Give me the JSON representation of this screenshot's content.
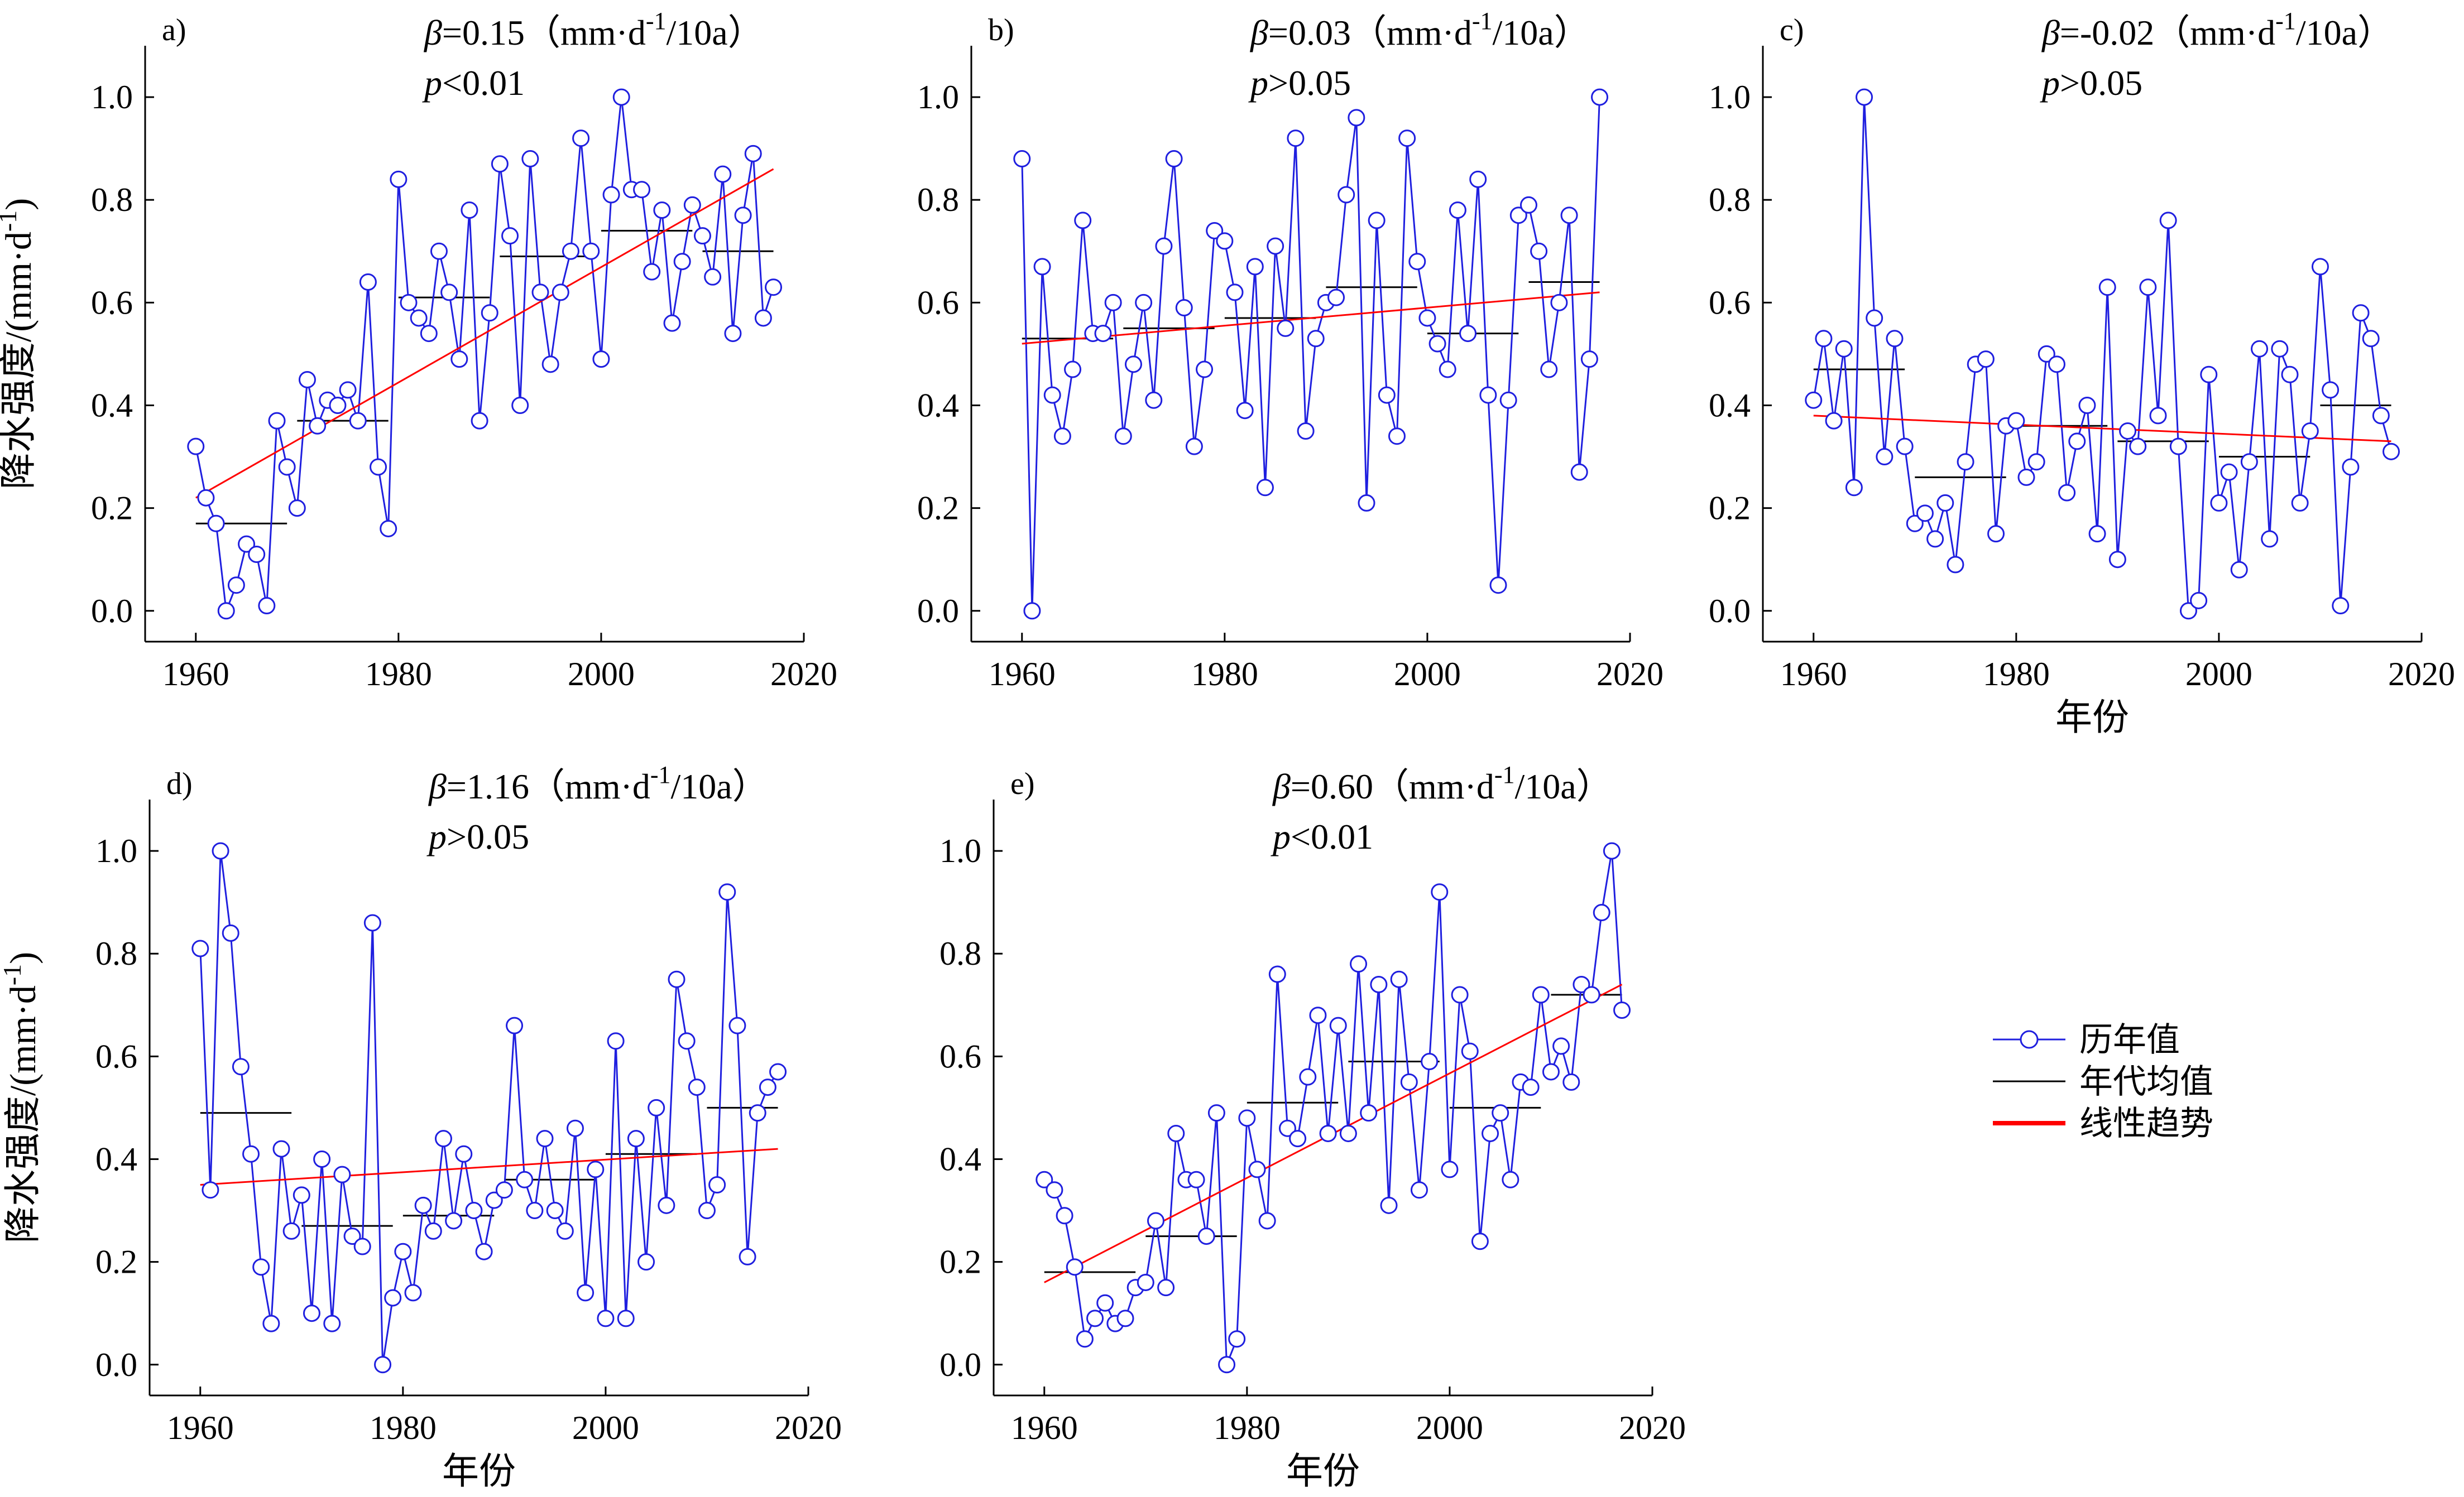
{
  "colors": {
    "series": "#1f1fdf",
    "trend": "#ff0000",
    "decade": "#000000"
  },
  "legend": {
    "items": [
      "历年值",
      "年代均值",
      "线性趋势"
    ]
  },
  "chart_data": [
    {
      "id": "a",
      "type": "line",
      "panel_label": "a)",
      "beta_symbol": "β",
      "beta_text": "=0.15（mm·d",
      "beta_sup": "-1",
      "beta_tail": "/10a）",
      "p_symbol": "p",
      "p_text": "<0.01",
      "ylabel_main": "降水强度/(mm·d",
      "ylabel_sup": "-1",
      "ylabel_tail": ")",
      "xlabel": "",
      "xlim": [
        1955,
        2020
      ],
      "ylim": [
        -0.06,
        1.1
      ],
      "xticks": [
        1960,
        1980,
        2000,
        2020
      ],
      "yticks": [
        0.0,
        0.2,
        0.4,
        0.6,
        0.8,
        1.0
      ],
      "x": [
        1960,
        1961,
        1962,
        1963,
        1964,
        1965,
        1966,
        1967,
        1968,
        1969,
        1970,
        1971,
        1972,
        1973,
        1974,
        1975,
        1976,
        1977,
        1978,
        1979,
        1980,
        1981,
        1982,
        1983,
        1984,
        1985,
        1986,
        1987,
        1988,
        1989,
        1990,
        1991,
        1992,
        1993,
        1994,
        1995,
        1996,
        1997,
        1998,
        1999,
        2000,
        2001,
        2002,
        2003,
        2004,
        2005,
        2006,
        2007,
        2008,
        2009,
        2010,
        2011,
        2012,
        2013,
        2014,
        2015,
        2016,
        2017
      ],
      "series": [
        {
          "name": "历年值",
          "values": [
            0.32,
            0.22,
            0.17,
            0.0,
            0.05,
            0.13,
            0.11,
            0.01,
            0.37,
            0.28,
            0.2,
            0.45,
            0.36,
            0.41,
            0.4,
            0.43,
            0.37,
            0.64,
            0.28,
            0.16,
            0.84,
            0.6,
            0.57,
            0.54,
            0.7,
            0.62,
            0.49,
            0.78,
            0.37,
            0.58,
            0.87,
            0.73,
            0.4,
            0.88,
            0.62,
            0.48,
            0.62,
            0.7,
            0.92,
            0.7,
            0.49,
            0.81,
            1.0,
            0.82,
            0.82,
            0.66,
            0.78,
            0.56,
            0.68,
            0.79,
            0.73,
            0.65,
            0.85,
            0.54,
            0.77,
            0.89,
            0.57,
            0.63
          ]
        }
      ],
      "decade_means": [
        {
          "x0": 1960,
          "x1": 1969,
          "value": 0.17
        },
        {
          "x0": 1970,
          "x1": 1979,
          "value": 0.37
        },
        {
          "x0": 1980,
          "x1": 1989,
          "value": 0.61
        },
        {
          "x0": 1990,
          "x1": 1999,
          "value": 0.69
        },
        {
          "x0": 2000,
          "x1": 2009,
          "value": 0.74
        },
        {
          "x0": 2010,
          "x1": 2017,
          "value": 0.7
        }
      ],
      "trend": {
        "x0": 1960,
        "y0": 0.22,
        "x1": 2017,
        "y1": 0.86
      }
    },
    {
      "id": "b",
      "type": "line",
      "panel_label": "b)",
      "beta_symbol": "β",
      "beta_text": "=0.03（mm·d",
      "beta_sup": "-1",
      "beta_tail": "/10a）",
      "p_symbol": "p",
      "p_text": ">0.05",
      "ylabel_main": "",
      "ylabel_sup": "",
      "ylabel_tail": "",
      "xlabel": "",
      "xlim": [
        1955,
        2020
      ],
      "ylim": [
        -0.06,
        1.1
      ],
      "xticks": [
        1960,
        1980,
        2000,
        2020
      ],
      "yticks": [
        0.0,
        0.2,
        0.4,
        0.6,
        0.8,
        1.0
      ],
      "x": [
        1960,
        1961,
        1962,
        1963,
        1964,
        1965,
        1966,
        1967,
        1968,
        1969,
        1970,
        1971,
        1972,
        1973,
        1974,
        1975,
        1976,
        1977,
        1978,
        1979,
        1980,
        1981,
        1982,
        1983,
        1984,
        1985,
        1986,
        1987,
        1988,
        1989,
        1990,
        1991,
        1992,
        1993,
        1994,
        1995,
        1996,
        1997,
        1998,
        1999,
        2000,
        2001,
        2002,
        2003,
        2004,
        2005,
        2006,
        2007,
        2008,
        2009,
        2010,
        2011,
        2012,
        2013,
        2014,
        2015,
        2016,
        2017
      ],
      "series": [
        {
          "name": "历年值",
          "values": [
            0.88,
            0.0,
            0.67,
            0.42,
            0.34,
            0.47,
            0.76,
            0.54,
            0.54,
            0.6,
            0.34,
            0.48,
            0.6,
            0.41,
            0.71,
            0.88,
            0.59,
            0.32,
            0.47,
            0.74,
            0.72,
            0.62,
            0.39,
            0.67,
            0.24,
            0.71,
            0.55,
            0.92,
            0.35,
            0.53,
            0.6,
            0.61,
            0.81,
            0.96,
            0.21,
            0.76,
            0.42,
            0.34,
            0.92,
            0.68,
            0.57,
            0.52,
            0.47,
            0.78,
            0.54,
            0.84,
            0.42,
            0.05,
            0.41,
            0.77,
            0.79,
            0.7,
            0.47,
            0.6,
            0.77,
            0.27,
            0.49,
            1.0
          ]
        }
      ],
      "decade_means": [
        {
          "x0": 1960,
          "x1": 1969,
          "value": 0.53
        },
        {
          "x0": 1970,
          "x1": 1979,
          "value": 0.55
        },
        {
          "x0": 1980,
          "x1": 1989,
          "value": 0.57
        },
        {
          "x0": 1990,
          "x1": 1999,
          "value": 0.63
        },
        {
          "x0": 2000,
          "x1": 2009,
          "value": 0.54
        },
        {
          "x0": 2010,
          "x1": 2017,
          "value": 0.64
        }
      ],
      "trend": {
        "x0": 1960,
        "y0": 0.52,
        "x1": 2017,
        "y1": 0.62
      }
    },
    {
      "id": "c",
      "type": "line",
      "panel_label": "c)",
      "beta_symbol": "β",
      "beta_text": "=-0.02（mm·d",
      "beta_sup": "-1",
      "beta_tail": "/10a）",
      "p_symbol": "p",
      "p_text": ">0.05",
      "ylabel_main": "",
      "ylabel_sup": "",
      "ylabel_tail": "",
      "xlabel": "年份",
      "xlim": [
        1955,
        2020
      ],
      "ylim": [
        -0.06,
        1.1
      ],
      "xticks": [
        1960,
        1980,
        2000,
        2020
      ],
      "yticks": [
        0.0,
        0.2,
        0.4,
        0.6,
        0.8,
        1.0
      ],
      "x": [
        1960,
        1961,
        1962,
        1963,
        1964,
        1965,
        1966,
        1967,
        1968,
        1969,
        1970,
        1971,
        1972,
        1973,
        1974,
        1975,
        1976,
        1977,
        1978,
        1979,
        1980,
        1981,
        1982,
        1983,
        1984,
        1985,
        1986,
        1987,
        1988,
        1989,
        1990,
        1991,
        1992,
        1993,
        1994,
        1995,
        1996,
        1997,
        1998,
        1999,
        2000,
        2001,
        2002,
        2003,
        2004,
        2005,
        2006,
        2007,
        2008,
        2009,
        2010,
        2011,
        2012,
        2013,
        2014,
        2015,
        2016,
        2017
      ],
      "series": [
        {
          "name": "历年值",
          "values": [
            0.41,
            0.53,
            0.37,
            0.51,
            0.24,
            1.0,
            0.57,
            0.3,
            0.53,
            0.32,
            0.17,
            0.19,
            0.14,
            0.21,
            0.09,
            0.29,
            0.48,
            0.49,
            0.15,
            0.36,
            0.37,
            0.26,
            0.29,
            0.5,
            0.48,
            0.23,
            0.33,
            0.4,
            0.15,
            0.63,
            0.1,
            0.35,
            0.32,
            0.63,
            0.38,
            0.76,
            0.32,
            0.0,
            0.02,
            0.46,
            0.21,
            0.27,
            0.08,
            0.29,
            0.51,
            0.14,
            0.51,
            0.46,
            0.21,
            0.35,
            0.67,
            0.43,
            0.01,
            0.28,
            0.58,
            0.53,
            0.38,
            0.31
          ]
        }
      ],
      "decade_means": [
        {
          "x0": 1960,
          "x1": 1969,
          "value": 0.47
        },
        {
          "x0": 1970,
          "x1": 1979,
          "value": 0.26
        },
        {
          "x0": 1980,
          "x1": 1989,
          "value": 0.36
        },
        {
          "x0": 1990,
          "x1": 1999,
          "value": 0.33
        },
        {
          "x0": 2000,
          "x1": 2009,
          "value": 0.3
        },
        {
          "x0": 2010,
          "x1": 2017,
          "value": 0.4
        }
      ],
      "trend": {
        "x0": 1960,
        "y0": 0.38,
        "x1": 2017,
        "y1": 0.33
      }
    },
    {
      "id": "d",
      "type": "line",
      "panel_label": "d)",
      "beta_symbol": "β",
      "beta_text": "=1.16（mm·d",
      "beta_sup": "-1",
      "beta_tail": "/10a）",
      "p_symbol": "p",
      "p_text": ">0.05",
      "ylabel_main": "降水强度/(mm·d",
      "ylabel_sup": "-1",
      "ylabel_tail": ")",
      "xlabel": "年份",
      "xlim": [
        1955,
        2020
      ],
      "ylim": [
        -0.06,
        1.1
      ],
      "xticks": [
        1960,
        1980,
        2000,
        2020
      ],
      "yticks": [
        0.0,
        0.2,
        0.4,
        0.6,
        0.8,
        1.0
      ],
      "x": [
        1960,
        1961,
        1962,
        1963,
        1964,
        1965,
        1966,
        1967,
        1968,
        1969,
        1970,
        1971,
        1972,
        1973,
        1974,
        1975,
        1976,
        1977,
        1978,
        1979,
        1980,
        1981,
        1982,
        1983,
        1984,
        1985,
        1986,
        1987,
        1988,
        1989,
        1990,
        1991,
        1992,
        1993,
        1994,
        1995,
        1996,
        1997,
        1998,
        1999,
        2000,
        2001,
        2002,
        2003,
        2004,
        2005,
        2006,
        2007,
        2008,
        2009,
        2010,
        2011,
        2012,
        2013,
        2014,
        2015,
        2016,
        2017
      ],
      "series": [
        {
          "name": "历年值",
          "values": [
            0.81,
            0.34,
            1.0,
            0.84,
            0.58,
            0.41,
            0.19,
            0.08,
            0.42,
            0.26,
            0.33,
            0.1,
            0.4,
            0.08,
            0.37,
            0.25,
            0.23,
            0.86,
            0.0,
            0.13,
            0.22,
            0.14,
            0.31,
            0.26,
            0.44,
            0.28,
            0.41,
            0.3,
            0.22,
            0.32,
            0.34,
            0.66,
            0.36,
            0.3,
            0.44,
            0.3,
            0.26,
            0.46,
            0.14,
            0.38,
            0.09,
            0.63,
            0.09,
            0.44,
            0.2,
            0.5,
            0.31,
            0.75,
            0.63,
            0.54,
            0.3,
            0.35,
            0.92,
            0.66,
            0.21,
            0.49,
            0.54,
            0.57
          ]
        }
      ],
      "decade_means": [
        {
          "x0": 1960,
          "x1": 1969,
          "value": 0.49
        },
        {
          "x0": 1970,
          "x1": 1979,
          "value": 0.27
        },
        {
          "x0": 1980,
          "x1": 1989,
          "value": 0.29
        },
        {
          "x0": 1990,
          "x1": 1999,
          "value": 0.36
        },
        {
          "x0": 2000,
          "x1": 2009,
          "value": 0.41
        },
        {
          "x0": 2010,
          "x1": 2017,
          "value": 0.5
        }
      ],
      "trend": {
        "x0": 1960,
        "y0": 0.35,
        "x1": 2017,
        "y1": 0.42
      }
    },
    {
      "id": "e",
      "type": "line",
      "panel_label": "e)",
      "beta_symbol": "β",
      "beta_text": "=0.60（mm·d",
      "beta_sup": "-1",
      "beta_tail": "/10a）",
      "p_symbol": "p",
      "p_text": "<0.01",
      "ylabel_main": "",
      "ylabel_sup": "",
      "ylabel_tail": "",
      "xlabel": "年份",
      "xlim": [
        1955,
        2020
      ],
      "ylim": [
        -0.06,
        1.1
      ],
      "xticks": [
        1960,
        1980,
        2000,
        2020
      ],
      "yticks": [
        0.0,
        0.2,
        0.4,
        0.6,
        0.8,
        1.0
      ],
      "x": [
        1960,
        1961,
        1962,
        1963,
        1964,
        1965,
        1966,
        1967,
        1968,
        1969,
        1970,
        1971,
        1972,
        1973,
        1974,
        1975,
        1976,
        1977,
        1978,
        1979,
        1980,
        1981,
        1982,
        1983,
        1984,
        1985,
        1986,
        1987,
        1988,
        1989,
        1990,
        1991,
        1992,
        1993,
        1994,
        1995,
        1996,
        1997,
        1998,
        1999,
        2000,
        2001,
        2002,
        2003,
        2004,
        2005,
        2006,
        2007,
        2008,
        2009,
        2010,
        2011,
        2012,
        2013,
        2014,
        2015,
        2016,
        2017
      ],
      "series": [
        {
          "name": "历年值",
          "values": [
            0.36,
            0.34,
            0.29,
            0.19,
            0.05,
            0.09,
            0.12,
            0.08,
            0.09,
            0.15,
            0.16,
            0.28,
            0.15,
            0.45,
            0.36,
            0.36,
            0.25,
            0.49,
            0.0,
            0.05,
            0.48,
            0.38,
            0.28,
            0.76,
            0.46,
            0.44,
            0.56,
            0.68,
            0.45,
            0.66,
            0.45,
            0.78,
            0.49,
            0.74,
            0.31,
            0.75,
            0.55,
            0.34,
            0.59,
            0.92,
            0.38,
            0.72,
            0.61,
            0.24,
            0.45,
            0.49,
            0.36,
            0.55,
            0.54,
            0.72,
            0.57,
            0.62,
            0.55,
            0.74,
            0.72,
            0.88,
            1.0,
            0.69
          ]
        }
      ],
      "decade_means": [
        {
          "x0": 1960,
          "x1": 1969,
          "value": 0.18
        },
        {
          "x0": 1970,
          "x1": 1979,
          "value": 0.25
        },
        {
          "x0": 1980,
          "x1": 1989,
          "value": 0.51
        },
        {
          "x0": 1990,
          "x1": 1999,
          "value": 0.59
        },
        {
          "x0": 2000,
          "x1": 2009,
          "value": 0.5
        },
        {
          "x0": 2010,
          "x1": 2017,
          "value": 0.72
        }
      ],
      "trend": {
        "x0": 1960,
        "y0": 0.16,
        "x1": 2017,
        "y1": 0.74
      }
    }
  ]
}
